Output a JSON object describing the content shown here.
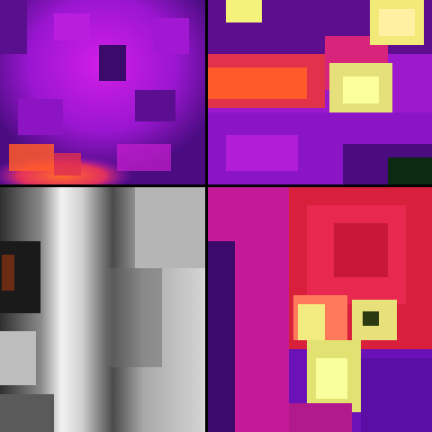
{
  "layout": "2x2-grid",
  "panels": [
    {
      "id": "top-left",
      "style": "thermal-pixelated",
      "palette": "magenta-purple-orange"
    },
    {
      "id": "top-right",
      "style": "thermal-pixelated",
      "palette": "magenta-orange-yellow"
    },
    {
      "id": "bottom-left",
      "style": "grayscale",
      "palette": "white-gray-black"
    },
    {
      "id": "bottom-right",
      "style": "thermal-pixelated",
      "palette": "red-magenta-yellow-violet"
    }
  ],
  "colors": {
    "magenta": "#c21ad6",
    "purple": "#7a16c7",
    "deep_purple": "#3c0a6a",
    "orange": "#ff5a2a",
    "yellow": "#f4f27a",
    "red": "#e0234f",
    "gray_light": "#d9d9d9",
    "gray_dark": "#3a3a3a"
  }
}
